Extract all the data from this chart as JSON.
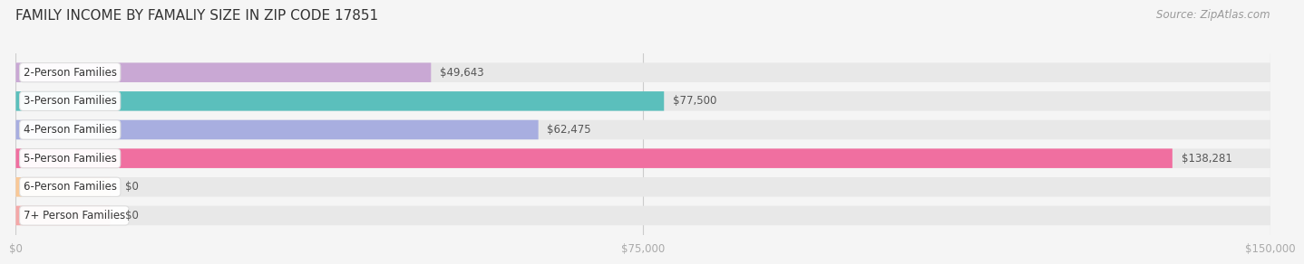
{
  "title": "FAMILY INCOME BY FAMALIY SIZE IN ZIP CODE 17851",
  "source": "Source: ZipAtlas.com",
  "categories": [
    "2-Person Families",
    "3-Person Families",
    "4-Person Families",
    "5-Person Families",
    "6-Person Families",
    "7+ Person Families"
  ],
  "values": [
    49643,
    77500,
    62475,
    138281,
    0,
    0
  ],
  "bar_colors": [
    "#c9a8d4",
    "#5bbfbc",
    "#a8aee0",
    "#f06fa0",
    "#f9c897",
    "#f4a8a8"
  ],
  "value_labels": [
    "$49,643",
    "$77,500",
    "$62,475",
    "$138,281",
    "$0",
    "$0"
  ],
  "xlim_max": 150000,
  "xticks": [
    0,
    75000,
    150000
  ],
  "xtick_labels": [
    "$0",
    "$75,000",
    "$150,000"
  ],
  "background_color": "#f5f5f5",
  "bar_bg_color": "#e8e8e8",
  "title_fontsize": 11,
  "label_fontsize": 8.5,
  "value_fontsize": 8.5,
  "source_fontsize": 8.5
}
